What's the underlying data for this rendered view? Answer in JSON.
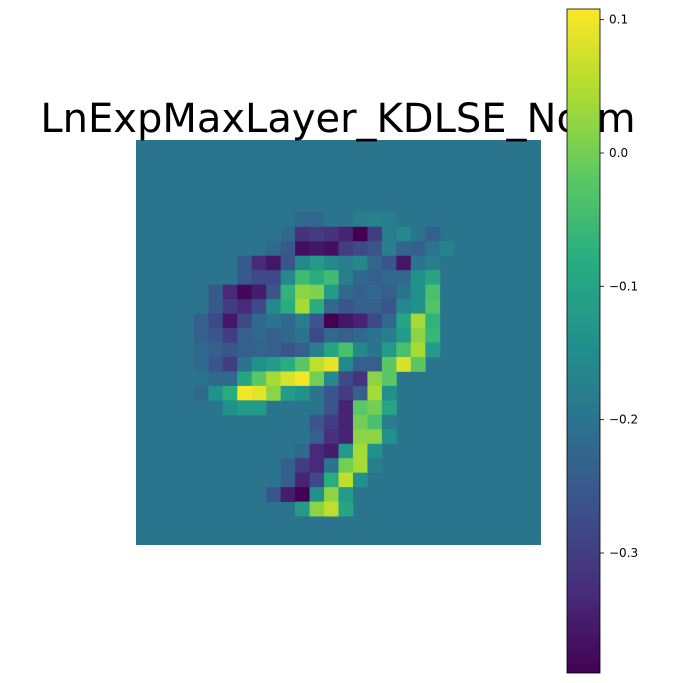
{
  "chart_data": {
    "type": "heatmap",
    "title": "LnExpMaxLayer_KDLSE_Norm",
    "colormap": "viridis",
    "value_range": [
      -0.39,
      0.108
    ],
    "colorbar": {
      "ticks": [
        0.1,
        0.0,
        -0.1,
        -0.2,
        -0.3
      ],
      "tick_labels": [
        "0.1",
        "0.0",
        "−0.1",
        "−0.2",
        "−0.3"
      ]
    },
    "grid_rows": 28,
    "grid_cols": 28,
    "background_value": -0.2,
    "cells": [
      [
        5,
        11,
        -0.22
      ],
      [
        5,
        12,
        -0.22
      ],
      [
        5,
        13,
        -0.2
      ],
      [
        5,
        14,
        -0.2
      ],
      [
        5,
        15,
        -0.18
      ],
      [
        5,
        16,
        -0.17
      ],
      [
        5,
        17,
        -0.18
      ],
      [
        6,
        10,
        -0.22
      ],
      [
        6,
        11,
        -0.32
      ],
      [
        6,
        12,
        -0.3
      ],
      [
        6,
        13,
        -0.32
      ],
      [
        6,
        14,
        -0.34
      ],
      [
        6,
        15,
        -0.39
      ],
      [
        6,
        16,
        -0.3
      ],
      [
        6,
        17,
        -0.18
      ],
      [
        6,
        18,
        -0.16
      ],
      [
        6,
        19,
        -0.2
      ],
      [
        6,
        20,
        -0.24
      ],
      [
        7,
        9,
        -0.22
      ],
      [
        7,
        10,
        -0.25
      ],
      [
        7,
        11,
        -0.37
      ],
      [
        7,
        12,
        -0.36
      ],
      [
        7,
        13,
        -0.37
      ],
      [
        7,
        14,
        -0.3
      ],
      [
        7,
        15,
        -0.28
      ],
      [
        7,
        16,
        -0.26
      ],
      [
        7,
        17,
        -0.18
      ],
      [
        7,
        18,
        -0.23
      ],
      [
        7,
        19,
        -0.24
      ],
      [
        7,
        20,
        -0.2
      ],
      [
        7,
        21,
        -0.17
      ],
      [
        8,
        7,
        -0.25
      ],
      [
        8,
        8,
        -0.33
      ],
      [
        8,
        9,
        -0.36
      ],
      [
        8,
        10,
        -0.26
      ],
      [
        8,
        11,
        -0.16
      ],
      [
        8,
        12,
        -0.12
      ],
      [
        8,
        13,
        -0.16
      ],
      [
        8,
        14,
        -0.18
      ],
      [
        8,
        15,
        -0.16
      ],
      [
        8,
        16,
        -0.22
      ],
      [
        8,
        17,
        -0.26
      ],
      [
        8,
        18,
        -0.36
      ],
      [
        8,
        19,
        -0.2
      ],
      [
        8,
        20,
        -0.18
      ],
      [
        9,
        7,
        -0.25
      ],
      [
        9,
        8,
        -0.28
      ],
      [
        9,
        9,
        -0.28
      ],
      [
        9,
        10,
        -0.16
      ],
      [
        9,
        11,
        -0.05
      ],
      [
        9,
        12,
        -0.08
      ],
      [
        9,
        13,
        -0.05
      ],
      [
        9,
        14,
        -0.18
      ],
      [
        9,
        15,
        -0.22
      ],
      [
        9,
        16,
        -0.24
      ],
      [
        9,
        17,
        -0.22
      ],
      [
        9,
        18,
        -0.22
      ],
      [
        9,
        19,
        -0.14
      ],
      [
        9,
        20,
        -0.1
      ],
      [
        10,
        5,
        -0.25
      ],
      [
        10,
        6,
        -0.33
      ],
      [
        10,
        7,
        -0.38
      ],
      [
        10,
        8,
        -0.35
      ],
      [
        10,
        9,
        -0.26
      ],
      [
        10,
        10,
        -0.07
      ],
      [
        10,
        11,
        0.02
      ],
      [
        10,
        12,
        0.01
      ],
      [
        10,
        13,
        -0.12
      ],
      [
        10,
        14,
        -0.22
      ],
      [
        10,
        15,
        -0.24
      ],
      [
        10,
        16,
        -0.22
      ],
      [
        10,
        17,
        -0.24
      ],
      [
        10,
        18,
        -0.2
      ],
      [
        10,
        19,
        -0.14
      ],
      [
        10,
        20,
        -0.04
      ],
      [
        11,
        5,
        -0.25
      ],
      [
        11,
        6,
        -0.3
      ],
      [
        11,
        7,
        -0.33
      ],
      [
        11,
        8,
        -0.28
      ],
      [
        11,
        9,
        -0.16
      ],
      [
        11,
        10,
        -0.08
      ],
      [
        11,
        11,
        0.04
      ],
      [
        11,
        12,
        -0.08
      ],
      [
        11,
        13,
        -0.22
      ],
      [
        11,
        14,
        -0.26
      ],
      [
        11,
        15,
        -0.24
      ],
      [
        11,
        16,
        -0.24
      ],
      [
        11,
        17,
        -0.26
      ],
      [
        11,
        18,
        -0.16
      ],
      [
        11,
        19,
        -0.14
      ],
      [
        11,
        20,
        -0.03
      ],
      [
        12,
        4,
        -0.24
      ],
      [
        12,
        5,
        -0.28
      ],
      [
        12,
        6,
        -0.36
      ],
      [
        12,
        7,
        -0.28
      ],
      [
        12,
        8,
        -0.22
      ],
      [
        12,
        9,
        -0.2
      ],
      [
        12,
        10,
        -0.22
      ],
      [
        12,
        11,
        -0.18
      ],
      [
        12,
        12,
        -0.26
      ],
      [
        12,
        13,
        -0.39
      ],
      [
        12,
        14,
        -0.36
      ],
      [
        12,
        15,
        -0.34
      ],
      [
        12,
        16,
        -0.28
      ],
      [
        12,
        17,
        -0.22
      ],
      [
        12,
        18,
        -0.1
      ],
      [
        12,
        19,
        0.04
      ],
      [
        12,
        20,
        -0.07
      ],
      [
        13,
        4,
        -0.24
      ],
      [
        13,
        5,
        -0.26
      ],
      [
        13,
        6,
        -0.3
      ],
      [
        13,
        7,
        -0.24
      ],
      [
        13,
        8,
        -0.22
      ],
      [
        13,
        9,
        -0.24
      ],
      [
        13,
        10,
        -0.22
      ],
      [
        13,
        11,
        -0.2
      ],
      [
        13,
        12,
        -0.28
      ],
      [
        13,
        13,
        -0.22
      ],
      [
        13,
        14,
        -0.24
      ],
      [
        13,
        15,
        -0.22
      ],
      [
        13,
        16,
        -0.2
      ],
      [
        13,
        17,
        -0.18
      ],
      [
        13,
        18,
        -0.12
      ],
      [
        13,
        19,
        0.02
      ],
      [
        13,
        20,
        -0.06
      ],
      [
        14,
        4,
        -0.22
      ],
      [
        14,
        5,
        -0.24
      ],
      [
        14,
        6,
        -0.26
      ],
      [
        14,
        7,
        -0.24
      ],
      [
        14,
        8,
        -0.23
      ],
      [
        14,
        9,
        -0.24
      ],
      [
        14,
        10,
        -0.26
      ],
      [
        14,
        11,
        -0.24
      ],
      [
        14,
        12,
        -0.18
      ],
      [
        14,
        13,
        -0.1
      ],
      [
        14,
        14,
        -0.04
      ],
      [
        14,
        15,
        -0.16
      ],
      [
        14,
        16,
        -0.2
      ],
      [
        14,
        17,
        -0.12
      ],
      [
        14,
        18,
        -0.04
      ],
      [
        14,
        19,
        0.04
      ],
      [
        14,
        20,
        -0.12
      ],
      [
        15,
        4,
        -0.22
      ],
      [
        15,
        5,
        -0.26
      ],
      [
        15,
        6,
        -0.3
      ],
      [
        15,
        7,
        -0.2
      ],
      [
        15,
        8,
        -0.14
      ],
      [
        15,
        9,
        -0.12
      ],
      [
        15,
        10,
        -0.08
      ],
      [
        15,
        11,
        -0.02
      ],
      [
        15,
        12,
        0.06
      ],
      [
        15,
        13,
        0.09
      ],
      [
        15,
        14,
        -0.16
      ],
      [
        15,
        15,
        -0.24
      ],
      [
        15,
        16,
        -0.24
      ],
      [
        15,
        17,
        -0.02
      ],
      [
        15,
        18,
        0.08
      ],
      [
        15,
        19,
        -0.02
      ],
      [
        16,
        4,
        -0.2
      ],
      [
        16,
        5,
        -0.22
      ],
      [
        16,
        6,
        -0.22
      ],
      [
        16,
        7,
        -0.1
      ],
      [
        16,
        8,
        -0.02
      ],
      [
        16,
        9,
        0.04
      ],
      [
        16,
        10,
        0.08
      ],
      [
        16,
        11,
        0.1
      ],
      [
        16,
        12,
        0.0
      ],
      [
        16,
        13,
        -0.16
      ],
      [
        16,
        14,
        -0.28
      ],
      [
        16,
        15,
        -0.32
      ],
      [
        16,
        16,
        0.02
      ],
      [
        16,
        17,
        -0.02
      ],
      [
        17,
        4,
        -0.22
      ],
      [
        17,
        5,
        -0.14
      ],
      [
        17,
        6,
        -0.08
      ],
      [
        17,
        7,
        0.1
      ],
      [
        17,
        8,
        0.09
      ],
      [
        17,
        9,
        0.02
      ],
      [
        17,
        10,
        -0.12
      ],
      [
        17,
        11,
        -0.14
      ],
      [
        17,
        12,
        -0.2
      ],
      [
        17,
        13,
        -0.26
      ],
      [
        17,
        14,
        -0.3
      ],
      [
        17,
        15,
        -0.24
      ],
      [
        17,
        16,
        0.04
      ],
      [
        17,
        17,
        -0.14
      ],
      [
        18,
        6,
        -0.14
      ],
      [
        18,
        7,
        -0.12
      ],
      [
        18,
        8,
        -0.12
      ],
      [
        18,
        13,
        -0.26
      ],
      [
        18,
        14,
        -0.34
      ],
      [
        18,
        15,
        -0.02
      ],
      [
        18,
        16,
        0.0
      ],
      [
        18,
        17,
        -0.1
      ],
      [
        19,
        12,
        -0.26
      ],
      [
        19,
        13,
        -0.3
      ],
      [
        19,
        14,
        -0.34
      ],
      [
        19,
        15,
        0.0
      ],
      [
        19,
        16,
        -0.04
      ],
      [
        19,
        17,
        -0.18
      ],
      [
        20,
        12,
        -0.24
      ],
      [
        20,
        13,
        -0.32
      ],
      [
        20,
        14,
        -0.34
      ],
      [
        20,
        15,
        0.02
      ],
      [
        20,
        16,
        0.02
      ],
      [
        20,
        17,
        -0.14
      ],
      [
        21,
        11,
        -0.22
      ],
      [
        21,
        12,
        -0.33
      ],
      [
        21,
        13,
        -0.35
      ],
      [
        21,
        14,
        -0.12
      ],
      [
        21,
        15,
        0.04
      ],
      [
        21,
        16,
        -0.14
      ],
      [
        22,
        10,
        -0.24
      ],
      [
        22,
        11,
        -0.3
      ],
      [
        22,
        12,
        -0.33
      ],
      [
        22,
        13,
        -0.2
      ],
      [
        22,
        14,
        0.0
      ],
      [
        22,
        15,
        0.04
      ],
      [
        22,
        16,
        -0.18
      ],
      [
        23,
        10,
        -0.24
      ],
      [
        23,
        11,
        -0.34
      ],
      [
        23,
        12,
        -0.28
      ],
      [
        23,
        13,
        -0.08
      ],
      [
        23,
        14,
        0.06
      ],
      [
        23,
        15,
        -0.14
      ],
      [
        24,
        9,
        -0.26
      ],
      [
        24,
        10,
        -0.35
      ],
      [
        24,
        11,
        -0.39
      ],
      [
        24,
        12,
        -0.14
      ],
      [
        24,
        13,
        0.02
      ],
      [
        24,
        14,
        -0.12
      ],
      [
        24,
        15,
        -0.2
      ],
      [
        25,
        11,
        -0.12
      ],
      [
        25,
        12,
        0.02
      ],
      [
        25,
        13,
        0.06
      ],
      [
        25,
        14,
        -0.1
      ]
    ]
  }
}
